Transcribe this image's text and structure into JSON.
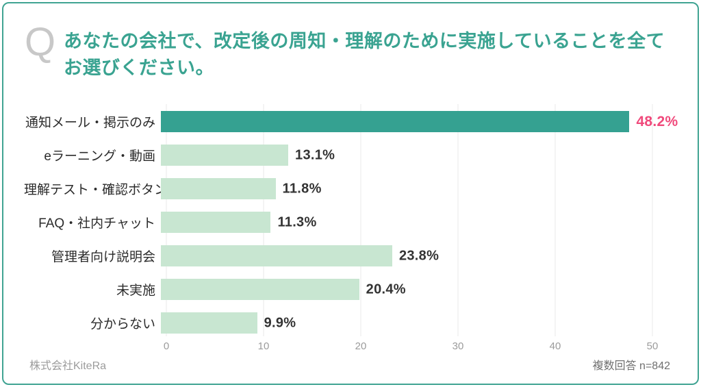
{
  "header": {
    "q_mark": "Q",
    "title_lines": [
      "あなたの会社で、改定後の周知・理解のために実施していることを全て",
      "お選びください。"
    ]
  },
  "footer": {
    "company": "株式会社KiteRa",
    "note": "複数回答 n=842"
  },
  "colors": {
    "bar_highlight": "#35a191",
    "bar": "#c8e6d1",
    "value_highlight": "#f0497b",
    "value": "#333333",
    "title": "#3aa391",
    "card_border": "#3fa392",
    "q_mark": "#c8c8c8",
    "gridline": "#e8e8e8",
    "tick": "#9b9b9b"
  },
  "chart_data": {
    "type": "bar",
    "orientation": "horizontal",
    "title": "あなたの会社で、改定後の周知・理解のために実施していることを全てお選びください。",
    "categories": [
      "通知メール・掲示のみ",
      "eラーニング・動画",
      "理解テスト・確認ボタン",
      "FAQ・社内チャット",
      "管理者向け説明会",
      "未実施",
      "分からない"
    ],
    "values": [
      48.2,
      13.1,
      11.8,
      11.3,
      23.8,
      20.4,
      9.9
    ],
    "value_labels": [
      "48.2%",
      "13.1%",
      "11.8%",
      "11.3%",
      "23.8%",
      "20.4%",
      "9.9%"
    ],
    "highlight_index": 0,
    "xlim": [
      0,
      50
    ],
    "xticks": [
      0,
      10,
      20,
      30,
      40,
      50
    ],
    "grid": true,
    "legend": false,
    "note": "複数回答 n=842",
    "source": "株式会社KiteRa"
  }
}
